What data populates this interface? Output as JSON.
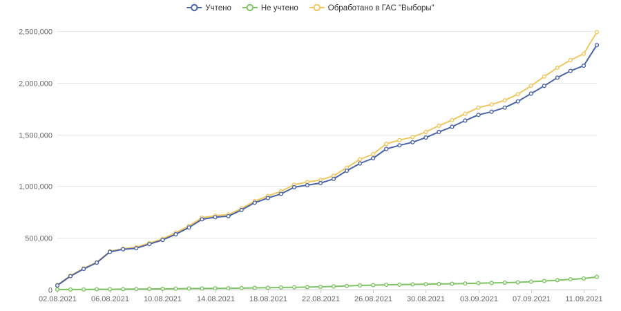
{
  "chart_data": {
    "type": "line",
    "title": "",
    "xlabel": "",
    "ylabel": "",
    "ylim": [
      0,
      2500000
    ],
    "yticks": [
      {
        "value": 0,
        "label": "0"
      },
      {
        "value": 500000,
        "label": "500,000"
      },
      {
        "value": 1000000,
        "label": "1,000,000"
      },
      {
        "value": 1500000,
        "label": "1,500,000"
      },
      {
        "value": 2000000,
        "label": "2,000,000"
      },
      {
        "value": 2500000,
        "label": "2,500,000"
      }
    ],
    "xtick_labels": [
      {
        "index": 0,
        "label": "02.08.2021"
      },
      {
        "index": 4,
        "label": "06.08.2021"
      },
      {
        "index": 8,
        "label": "10.08.2021"
      },
      {
        "index": 12,
        "label": "14.08.2021"
      },
      {
        "index": 16,
        "label": "18.08.2021"
      },
      {
        "index": 20,
        "label": "22.08.2021"
      },
      {
        "index": 24,
        "label": "26.08.2021"
      },
      {
        "index": 28,
        "label": "30.08.2021"
      },
      {
        "index": 32,
        "label": "03.09.2021"
      },
      {
        "index": 36,
        "label": "07.09.2021"
      },
      {
        "index": 40,
        "label": "11.09.2021"
      }
    ],
    "grid": true,
    "legend_position": "top-center",
    "series": [
      {
        "name": "Учтено",
        "color": "#4a63a8",
        "values": [
          40000,
          130000,
          200000,
          260000,
          365000,
          390000,
          400000,
          440000,
          480000,
          535000,
          600000,
          680000,
          700000,
          710000,
          770000,
          840000,
          885000,
          925000,
          990000,
          1010000,
          1030000,
          1070000,
          1150000,
          1220000,
          1270000,
          1360000,
          1395000,
          1425000,
          1470000,
          1525000,
          1575000,
          1635000,
          1690000,
          1720000,
          1760000,
          1820000,
          1895000,
          1970000,
          2050000,
          2115000,
          2165000,
          2365000
        ]
      },
      {
        "name": "Не учтено",
        "color": "#7dc462",
        "values": [
          500,
          1000,
          1500,
          2500,
          3000,
          4000,
          5000,
          6000,
          7500,
          9000,
          10000,
          11000,
          12000,
          13000,
          14000,
          16000,
          18000,
          20000,
          22000,
          24000,
          27000,
          30000,
          35000,
          40000,
          43000,
          46000,
          48000,
          50000,
          52000,
          54000,
          56000,
          59000,
          62000,
          64000,
          67000,
          70000,
          76000,
          83000,
          91000,
          99000,
          107000,
          122000
        ]
      },
      {
        "name": "Обработано в ГАС \"Выборы\"",
        "color": "#f0c75e",
        "values": [
          45000,
          135000,
          205000,
          265000,
          370000,
          395000,
          410000,
          450000,
          490000,
          550000,
          615000,
          695000,
          715000,
          725000,
          785000,
          855000,
          905000,
          950000,
          1015000,
          1040000,
          1060000,
          1100000,
          1180000,
          1260000,
          1310000,
          1410000,
          1445000,
          1475000,
          1525000,
          1585000,
          1640000,
          1700000,
          1760000,
          1790000,
          1830000,
          1890000,
          1970000,
          2060000,
          2145000,
          2220000,
          2280000,
          2490000
        ]
      }
    ]
  }
}
